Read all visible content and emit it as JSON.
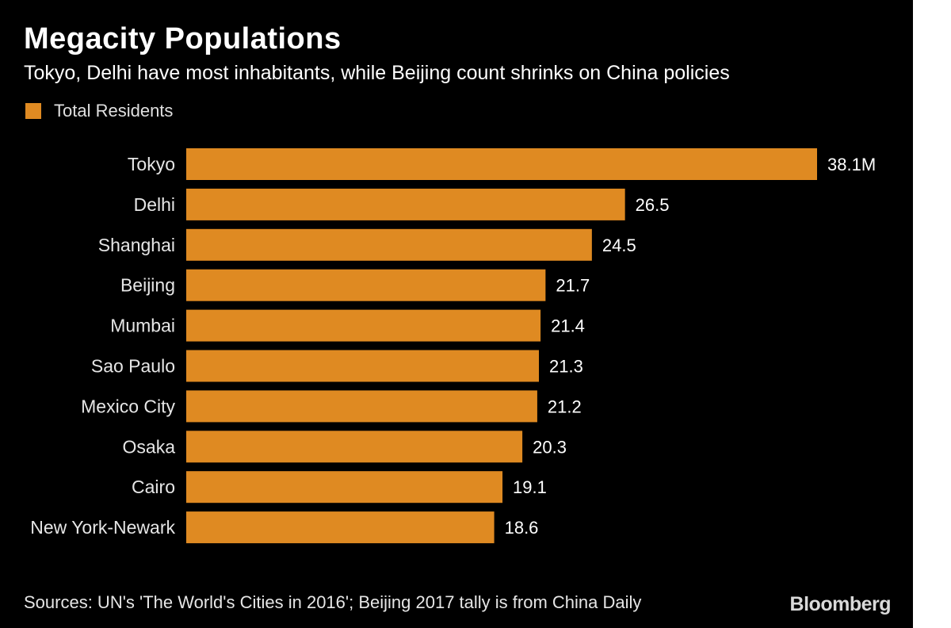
{
  "title": "Megacity Populations",
  "subtitle": "Tokyo, Delhi have most inhabitants, while Beijing count shrinks on China policies",
  "source": "Sources: UN's 'The World's Cities in 2016'; Beijing 2017 tally is from China Daily",
  "brand": "Bloomberg",
  "colors": {
    "background": "#000000",
    "bar": "#df8a22",
    "text": "#ffffff"
  },
  "chart_data": {
    "type": "bar",
    "orientation": "horizontal",
    "title": "Megacity Populations",
    "subtitle": "Tokyo, Delhi have most inhabitants, while Beijing count shrinks on China policies",
    "legend": [
      "Total Residents"
    ],
    "legend_position": "top-left",
    "grid": false,
    "categories": [
      "Tokyo",
      "Delhi",
      "Shanghai",
      "Beijing",
      "Mumbai",
      "Sao Paulo",
      "Mexico City",
      "Osaka",
      "Cairo",
      "New York-Newark"
    ],
    "series": [
      {
        "name": "Total Residents",
        "values": [
          38.1,
          26.5,
          24.5,
          21.7,
          21.4,
          21.3,
          21.2,
          20.3,
          19.1,
          18.6
        ],
        "labels": [
          "38.1M",
          "26.5",
          "24.5",
          "21.7",
          "21.4",
          "21.3",
          "21.2",
          "20.3",
          "19.1",
          "18.6"
        ]
      }
    ],
    "unit": "M",
    "xlim": [
      0,
      38.1
    ]
  }
}
